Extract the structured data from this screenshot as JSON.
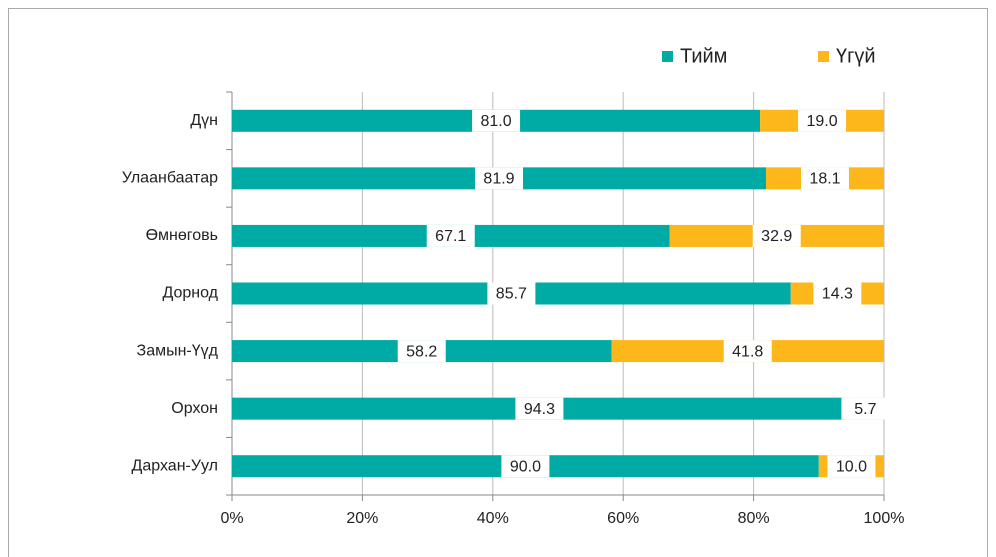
{
  "chart_data": {
    "type": "stacked_bar_horizontal",
    "categories": [
      "Дүн",
      "Улаанбаатар",
      "Өмнөговь",
      "Дорнод",
      "Замын-Үүд",
      "Орхон",
      "Дархан-Уул"
    ],
    "series": [
      {
        "name": "Тийм",
        "color": "#00aaa5",
        "values": [
          81.0,
          81.9,
          67.1,
          85.7,
          58.2,
          94.3,
          90.0
        ],
        "value_labels": [
          "81.0",
          "81.9",
          "67.1",
          "85.7",
          "58.2",
          "94.3",
          "90.0"
        ]
      },
      {
        "name": "Үгүй",
        "color": "#fdb71a",
        "values": [
          19.0,
          18.1,
          32.9,
          14.3,
          41.8,
          5.7,
          10.0
        ],
        "value_labels": [
          "19.0",
          "18.1",
          "32.9",
          "14.3",
          "41.8",
          "5.7",
          "10.0"
        ]
      }
    ],
    "xlim": [
      0,
      100
    ],
    "xticks": [
      {
        "value": 0,
        "label": "0%"
      },
      {
        "value": 20,
        "label": "20%"
      },
      {
        "value": 40,
        "label": "40%"
      },
      {
        "value": 60,
        "label": "60%"
      },
      {
        "value": 80,
        "label": "80%"
      },
      {
        "value": 100,
        "label": "100%"
      }
    ],
    "grid": true,
    "legend": "top-right"
  }
}
